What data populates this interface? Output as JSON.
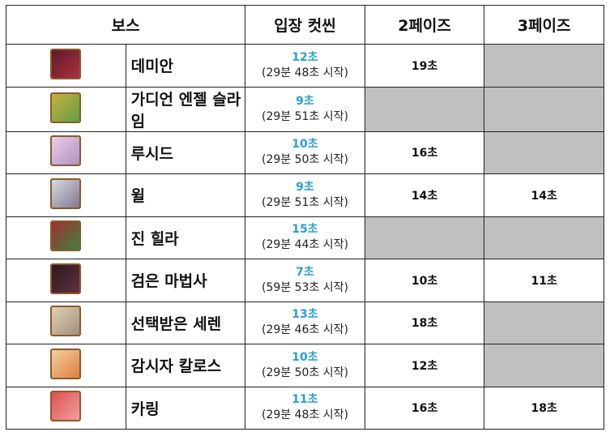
{
  "table": {
    "header": [
      "보스",
      "입장 컷씬",
      "2페이즈",
      "3페이즈"
    ],
    "rows": [
      {
        "name": "데미안",
        "cutscene": "12초",
        "start": "(29분 48초 시작)",
        "phase2": "19초",
        "phase3": null
      },
      {
        "name": "가디언 엔젤 슬라임",
        "cutscene": "9초",
        "start": "(29분 51초 시작)",
        "phase2": null,
        "phase3": null
      },
      {
        "name": "루시드",
        "cutscene": "10초",
        "start": "(29분 50초 시작)",
        "phase2": "16초",
        "phase3": null
      },
      {
        "name": "윌",
        "cutscene": "9초",
        "start": "(29분 51초 시작)",
        "phase2": "14초",
        "phase3": "14초"
      },
      {
        "name": "진 힐라",
        "cutscene": "15초",
        "start": "(29분 44초 시작)",
        "phase2": null,
        "phase3": null
      },
      {
        "name": "검은 마법사",
        "cutscene": "7초",
        "start": "(59분 53초 시작)",
        "phase2": "10초",
        "phase3": "11초"
      },
      {
        "name": "선택받은 세렌",
        "cutscene": "13초",
        "start": "(29분 46초 시작)",
        "phase2": "18초",
        "phase3": null
      },
      {
        "name": "감시자 칼로스",
        "cutscene": "10초",
        "start": "(29분 50초 시작)",
        "phase2": "12초",
        "phase3": null
      },
      {
        "name": "카링",
        "cutscene": "11초",
        "start": "(29분 48초 시작)",
        "phase2": "16초",
        "phase3": "18초"
      }
    ]
  }
}
